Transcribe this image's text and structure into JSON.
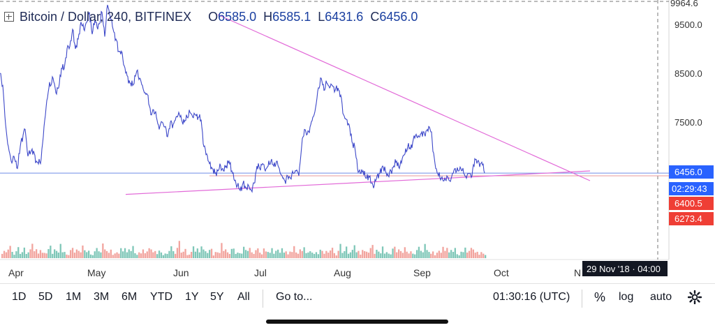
{
  "header": {
    "symbol": "Bitcoin / Dollar, 240, BITFINEX",
    "open_label": "O",
    "open": "6585.0",
    "high_label": "H",
    "high": "6585.1",
    "low_label": "L",
    "low": "6431.6",
    "close_label": "C",
    "close": "6456.0"
  },
  "price_tags": {
    "last_price": "6456.0",
    "countdown": "02:29:43",
    "red_level_1": "6400.5",
    "red_level_2": "6273.4",
    "crosshair_date": "29 Nov '18 · 04:00"
  },
  "toolbar": {
    "ranges": [
      "1D",
      "5D",
      "1M",
      "3M",
      "6M",
      "YTD",
      "1Y",
      "5Y",
      "All"
    ],
    "goto": "Go to...",
    "clock": "01:30:16 (UTC)",
    "percent": "%",
    "log": "log",
    "auto": "auto"
  },
  "colors": {
    "price_line": "#3d48c9",
    "trendline": "#e26ad8",
    "horizontal_blue": "#6f8ee6",
    "horizontal_red": "#e89a9a",
    "volume_up": "#7fc7b8",
    "volume_down": "#f2a49e",
    "tag_blue": "#2962ff",
    "tag_red": "#ef3e35",
    "tag_dark": "#131722"
  },
  "chart_data": {
    "type": "line",
    "title": "Bitcoin / Dollar, 240, BITFINEX",
    "y_axis_labels": [
      "9964.6",
      "9500.0",
      "8500.0",
      "7500.0"
    ],
    "x_axis_labels": [
      "Apr",
      "May",
      "Jun",
      "Jul",
      "Aug",
      "Sep",
      "Oct",
      "N"
    ],
    "ylim": [
      6000,
      10050
    ],
    "series": [
      {
        "values": [
          [
            0,
            8500
          ],
          [
            4,
            8250
          ],
          [
            8,
            7450
          ],
          [
            12,
            7000
          ],
          [
            16,
            6700
          ],
          [
            20,
            6800
          ],
          [
            25,
            6550
          ],
          [
            30,
            7100
          ],
          [
            36,
            7350
          ],
          [
            40,
            6800
          ],
          [
            46,
            6950
          ],
          [
            52,
            6700
          ],
          [
            58,
            6650
          ],
          [
            62,
            7200
          ],
          [
            66,
            7800
          ],
          [
            70,
            8200
          ],
          [
            76,
            8400
          ],
          [
            80,
            8100
          ],
          [
            84,
            8200
          ],
          [
            88,
            8600
          ],
          [
            92,
            8600
          ],
          [
            96,
            9000
          ],
          [
            100,
            9050
          ],
          [
            104,
            9400
          ],
          [
            108,
            9000
          ],
          [
            112,
            9200
          ],
          [
            116,
            9550
          ],
          [
            120,
            9400
          ],
          [
            124,
            9550
          ],
          [
            128,
            9750
          ],
          [
            132,
            9300
          ],
          [
            136,
            9600
          ],
          [
            140,
            9400
          ],
          [
            146,
            9750
          ],
          [
            150,
            9250
          ],
          [
            154,
            9900
          ],
          [
            158,
            9650
          ],
          [
            162,
            9400
          ],
          [
            166,
            9200
          ],
          [
            170,
            8950
          ],
          [
            174,
            8950
          ],
          [
            178,
            8650
          ],
          [
            182,
            8450
          ],
          [
            186,
            8300
          ],
          [
            190,
            8250
          ],
          [
            196,
            8550
          ],
          [
            200,
            8400
          ],
          [
            204,
            8250
          ],
          [
            208,
            8100
          ],
          [
            212,
            8050
          ],
          [
            216,
            7650
          ],
          [
            220,
            7750
          ],
          [
            224,
            7600
          ],
          [
            228,
            7350
          ],
          [
            232,
            7500
          ],
          [
            236,
            7400
          ],
          [
            240,
            7200
          ],
          [
            244,
            7500
          ],
          [
            248,
            7450
          ],
          [
            252,
            7600
          ],
          [
            256,
            7700
          ],
          [
            260,
            7550
          ],
          [
            264,
            7500
          ],
          [
            268,
            7600
          ],
          [
            272,
            7700
          ],
          [
            276,
            7600
          ],
          [
            280,
            7650
          ],
          [
            284,
            7600
          ],
          [
            288,
            7550
          ],
          [
            292,
            7000
          ],
          [
            296,
            6850
          ],
          [
            300,
            6650
          ],
          [
            304,
            6550
          ],
          [
            308,
            6450
          ],
          [
            312,
            6500
          ],
          [
            316,
            6600
          ],
          [
            320,
            6500
          ],
          [
            324,
            6600
          ],
          [
            328,
            6700
          ],
          [
            332,
            6500
          ],
          [
            336,
            6300
          ],
          [
            340,
            6200
          ],
          [
            344,
            6100
          ],
          [
            348,
            6250
          ],
          [
            352,
            6150
          ],
          [
            356,
            6200
          ],
          [
            360,
            6100
          ],
          [
            364,
            6250
          ],
          [
            368,
            6600
          ],
          [
            372,
            6550
          ],
          [
            376,
            6650
          ],
          [
            380,
            6500
          ],
          [
            384,
            6600
          ],
          [
            388,
            6700
          ],
          [
            392,
            6600
          ],
          [
            396,
            6700
          ],
          [
            400,
            6550
          ],
          [
            404,
            6400
          ],
          [
            408,
            6300
          ],
          [
            412,
            6400
          ],
          [
            416,
            6350
          ],
          [
            420,
            6450
          ],
          [
            424,
            6500
          ],
          [
            428,
            6400
          ],
          [
            432,
            7000
          ],
          [
            436,
            7350
          ],
          [
            440,
            7250
          ],
          [
            444,
            7400
          ],
          [
            448,
            7600
          ],
          [
            452,
            7800
          ],
          [
            456,
            8200
          ],
          [
            460,
            8400
          ],
          [
            464,
            8150
          ],
          [
            468,
            8300
          ],
          [
            472,
            8200
          ],
          [
            476,
            8250
          ],
          [
            480,
            8150
          ],
          [
            484,
            8200
          ],
          [
            488,
            8050
          ],
          [
            492,
            7650
          ],
          [
            496,
            7550
          ],
          [
            500,
            7450
          ],
          [
            504,
            7100
          ],
          [
            508,
            7000
          ],
          [
            512,
            6550
          ],
          [
            516,
            6450
          ],
          [
            520,
            6500
          ],
          [
            524,
            6350
          ],
          [
            528,
            6400
          ],
          [
            532,
            6250
          ],
          [
            536,
            6200
          ],
          [
            540,
            6400
          ],
          [
            544,
            6450
          ],
          [
            548,
            6600
          ],
          [
            552,
            6500
          ],
          [
            556,
            6400
          ],
          [
            560,
            6500
          ],
          [
            564,
            6600
          ],
          [
            568,
            6700
          ],
          [
            572,
            6550
          ],
          [
            576,
            6750
          ],
          [
            580,
            6850
          ],
          [
            584,
            7000
          ],
          [
            588,
            6950
          ],
          [
            592,
            7150
          ],
          [
            596,
            7250
          ],
          [
            600,
            7200
          ],
          [
            604,
            7300
          ],
          [
            608,
            7250
          ],
          [
            612,
            7350
          ],
          [
            616,
            7350
          ],
          [
            618,
            7300
          ],
          [
            620,
            6900
          ],
          [
            624,
            6550
          ],
          [
            628,
            6400
          ],
          [
            632,
            6350
          ],
          [
            636,
            6300
          ],
          [
            640,
            6400
          ],
          [
            644,
            6300
          ],
          [
            648,
            6450
          ],
          [
            652,
            6550
          ],
          [
            656,
            6500
          ],
          [
            660,
            6550
          ],
          [
            664,
            6450
          ],
          [
            668,
            6350
          ],
          [
            672,
            6450
          ],
          [
            676,
            6400
          ],
          [
            680,
            6750
          ],
          [
            684,
            6700
          ],
          [
            688,
            6650
          ],
          [
            690,
            6680
          ],
          [
            694,
            6456
          ]
        ]
      }
    ],
    "annotations": [
      {
        "type": "trendline",
        "from": [
          312,
          9700
        ],
        "to": [
          845,
          6300
        ]
      },
      {
        "type": "trendline",
        "from": [
          180,
          6020
        ],
        "to": [
          845,
          6500
        ]
      },
      {
        "type": "hline",
        "value": 6456.0,
        "color": "blue"
      },
      {
        "type": "hline",
        "value": 6400.5,
        "color": "red"
      }
    ],
    "volume": [
      3,
      5,
      4,
      6,
      9,
      5,
      3,
      7,
      12,
      4,
      5,
      8,
      3,
      4,
      6,
      10,
      5,
      7,
      4,
      8,
      6,
      5,
      4,
      7,
      9,
      3,
      6,
      5,
      4,
      11,
      5,
      6,
      4,
      3,
      7,
      8,
      4,
      6,
      5,
      4,
      9,
      6,
      5,
      7,
      4,
      3,
      6,
      8,
      5,
      4,
      10,
      6,
      5,
      4,
      7,
      3,
      5,
      6,
      4,
      8,
      5,
      7,
      4,
      6,
      5,
      9,
      4,
      3,
      6,
      5,
      8,
      4,
      5,
      7,
      6,
      4,
      5,
      3,
      6,
      5
    ]
  }
}
